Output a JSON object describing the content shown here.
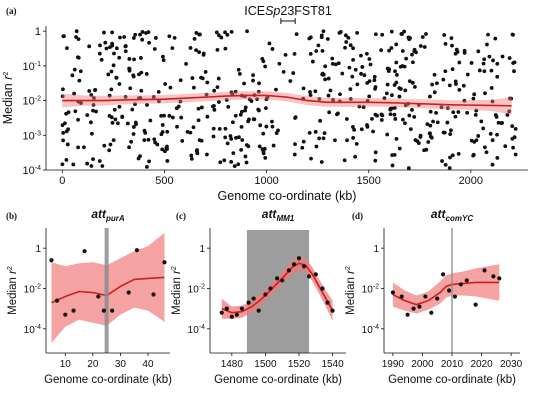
{
  "colors": {
    "ribbon": "#f07a7a",
    "trend": "#cc1f1f",
    "points": "#111111",
    "bar": "#8c8c8c"
  },
  "chart_data": [
    {
      "id": "a",
      "type": "scatter",
      "panel_label": "(a)",
      "title": "",
      "annotation": {
        "pre": "ICE",
        "italic": "Sp",
        "post": "23FST81",
        "x_range_kb": [
          1070,
          1140
        ]
      },
      "xlabel": "Genome co-ordinate (kb)",
      "ylabel_main": "Median ",
      "ylabel_italic": "r",
      "ylabel_sup": "2",
      "y_log": true,
      "xlim": [
        -80,
        2280
      ],
      "ylim_exp": [
        -4,
        0.15
      ],
      "xticks": [
        0,
        500,
        1000,
        1500,
        2000
      ],
      "yticks": [
        {
          "exp": 0,
          "base": "1",
          "sup": ""
        },
        {
          "exp": -1,
          "base": "10",
          "sup": "-1"
        },
        {
          "exp": -2,
          "base": "10",
          "sup": "-2"
        },
        {
          "exp": -3,
          "base": "10",
          "sup": "-3"
        },
        {
          "exp": -4,
          "base": "10",
          "sup": "-4"
        }
      ],
      "trend": {
        "x": [
          0,
          100,
          200,
          300,
          400,
          500,
          600,
          700,
          800,
          900,
          1000,
          1100,
          1200,
          1300,
          1400,
          1500,
          1600,
          1700,
          1800,
          1900,
          2000,
          2100,
          2200
        ],
        "y_exp": [
          -2.0,
          -2.0,
          -2.0,
          -1.98,
          -1.97,
          -1.96,
          -1.93,
          -1.9,
          -1.87,
          -1.85,
          -1.85,
          -1.9,
          -2.0,
          -2.05,
          -2.05,
          -2.05,
          -2.06,
          -2.08,
          -2.1,
          -2.12,
          -2.13,
          -2.14,
          -2.15
        ],
        "band": [
          0.2,
          0.15,
          0.14,
          0.13,
          0.12,
          0.12,
          0.12,
          0.12,
          0.12,
          0.12,
          0.12,
          0.12,
          0.13,
          0.13,
          0.13,
          0.12,
          0.12,
          0.12,
          0.13,
          0.13,
          0.14,
          0.16,
          0.25
        ]
      },
      "n_points": 620
    },
    {
      "id": "b",
      "type": "scatter",
      "panel_label": "(b)",
      "title_main": "att",
      "title_sub": "purA",
      "xlabel": "Genome co-ordinate (kb)",
      "ylabel_main": "Median ",
      "ylabel_italic": "r",
      "ylabel_sup": "2",
      "y_log": true,
      "xlim": [
        3,
        48
      ],
      "ylim_exp": [
        -5.2,
        1.0
      ],
      "xticks": [
        10,
        20,
        30,
        40
      ],
      "yticks": [
        {
          "exp": 0,
          "base": "1",
          "sup": ""
        },
        {
          "exp": -2,
          "base": "10",
          "sup": "-2"
        },
        {
          "exp": -4,
          "base": "10",
          "sup": "-4"
        }
      ],
      "vline_x": 25,
      "points": [
        {
          "x": 5,
          "y_exp": -0.6
        },
        {
          "x": 7,
          "y_exp": -2.6
        },
        {
          "x": 10,
          "y_exp": -3.3
        },
        {
          "x": 13,
          "y_exp": -3.1
        },
        {
          "x": 17,
          "y_exp": -0.15
        },
        {
          "x": 22,
          "y_exp": -2.4
        },
        {
          "x": 24,
          "y_exp": -3.1
        },
        {
          "x": 27,
          "y_exp": -3.1
        },
        {
          "x": 33,
          "y_exp": -2.2
        },
        {
          "x": 36,
          "y_exp": -0.1
        },
        {
          "x": 42,
          "y_exp": -2.3
        },
        {
          "x": 46,
          "y_exp": -0.7
        }
      ],
      "trend": {
        "x": [
          5,
          10,
          15,
          20,
          25,
          30,
          35,
          40,
          46
        ],
        "y_exp": [
          -2.7,
          -2.4,
          -2.15,
          -2.2,
          -2.35,
          -1.9,
          -1.55,
          -1.5,
          -1.45
        ],
        "band": [
          2.0,
          1.5,
          1.4,
          1.5,
          1.5,
          1.4,
          1.4,
          1.6,
          2.2
        ]
      }
    },
    {
      "id": "c",
      "type": "scatter",
      "panel_label": "(c)",
      "title_main": "att",
      "title_sub": "MM1",
      "xlabel": "Genome co-ordinate (kb)",
      "ylabel_main": "Median ",
      "ylabel_italic": "r",
      "ylabel_sup": "2",
      "y_log": true,
      "xlim": [
        1467,
        1548
      ],
      "ylim_exp": [
        -5.2,
        1.0
      ],
      "xticks": [
        1480,
        1500,
        1520,
        1540
      ],
      "yticks": [
        {
          "exp": 0,
          "base": "1",
          "sup": ""
        },
        {
          "exp": -2,
          "base": "10",
          "sup": "-2"
        },
        {
          "exp": -4,
          "base": "10",
          "sup": "-4"
        }
      ],
      "shaded_x": [
        1489,
        1526
      ],
      "points": [
        {
          "x": 1474,
          "y_exp": -3.2
        },
        {
          "x": 1477,
          "y_exp": -3.0
        },
        {
          "x": 1480,
          "y_exp": -3.4
        },
        {
          "x": 1483,
          "y_exp": -3.3
        },
        {
          "x": 1486,
          "y_exp": -3.0
        },
        {
          "x": 1490,
          "y_exp": -2.7
        },
        {
          "x": 1493,
          "y_exp": -2.5
        },
        {
          "x": 1496,
          "y_exp": -3.1
        },
        {
          "x": 1500,
          "y_exp": -2.3
        },
        {
          "x": 1503,
          "y_exp": -2.0
        },
        {
          "x": 1507,
          "y_exp": -1.5
        },
        {
          "x": 1510,
          "y_exp": -1.6
        },
        {
          "x": 1514,
          "y_exp": -1.1
        },
        {
          "x": 1517,
          "y_exp": -0.8
        },
        {
          "x": 1520,
          "y_exp": -0.5
        },
        {
          "x": 1523,
          "y_exp": -0.9
        },
        {
          "x": 1526,
          "y_exp": -1.4
        },
        {
          "x": 1530,
          "y_exp": -1.3
        },
        {
          "x": 1534,
          "y_exp": -2.0
        },
        {
          "x": 1537,
          "y_exp": -2.7
        },
        {
          "x": 1540,
          "y_exp": -3.1
        }
      ],
      "trend": {
        "x": [
          1474,
          1480,
          1486,
          1492,
          1498,
          1504,
          1510,
          1516,
          1520,
          1524,
          1528,
          1532,
          1536,
          1540
        ],
        "y_exp": [
          -3.0,
          -3.2,
          -3.15,
          -2.9,
          -2.5,
          -2.0,
          -1.5,
          -0.95,
          -0.75,
          -0.85,
          -1.3,
          -1.9,
          -2.5,
          -3.1
        ],
        "band": [
          0.5,
          0.3,
          0.3,
          0.3,
          0.3,
          0.3,
          0.3,
          0.35,
          0.35,
          0.35,
          0.35,
          0.35,
          0.4,
          0.5
        ]
      }
    },
    {
      "id": "d",
      "type": "scatter",
      "panel_label": "(d)",
      "title_main": "att",
      "title_sub": "comYC",
      "xlabel": "Genome co-ordinate (kb)",
      "ylabel_main": "Median ",
      "ylabel_italic": "r",
      "ylabel_sup": "2",
      "y_log": true,
      "xlim": [
        1987,
        2033
      ],
      "ylim_exp": [
        -5.2,
        1.0
      ],
      "xticks": [
        1990,
        2000,
        2010,
        2020,
        2030
      ],
      "yticks": [
        {
          "exp": 0,
          "base": "1",
          "sup": ""
        },
        {
          "exp": -2,
          "base": "10",
          "sup": "-2"
        },
        {
          "exp": -4,
          "base": "10",
          "sup": "-4"
        }
      ],
      "vline_x": 2010,
      "points": [
        {
          "x": 1990,
          "y_exp": -2.2
        },
        {
          "x": 1993,
          "y_exp": -2.4
        },
        {
          "x": 1995,
          "y_exp": -3.3
        },
        {
          "x": 1997,
          "y_exp": -3.0
        },
        {
          "x": 1999,
          "y_exp": -2.9
        },
        {
          "x": 2001,
          "y_exp": -2.4
        },
        {
          "x": 2003,
          "y_exp": -3.2
        },
        {
          "x": 2005,
          "y_exp": -2.5
        },
        {
          "x": 2007,
          "y_exp": -1.3
        },
        {
          "x": 2009,
          "y_exp": -2.1
        },
        {
          "x": 2011,
          "y_exp": -2.4
        },
        {
          "x": 2013,
          "y_exp": -1.8
        },
        {
          "x": 2015,
          "y_exp": -1.6
        },
        {
          "x": 2018,
          "y_exp": -2.8
        },
        {
          "x": 2021,
          "y_exp": -1.1
        },
        {
          "x": 2024,
          "y_exp": -1.4
        },
        {
          "x": 2026,
          "y_exp": -1.5
        }
      ],
      "trend": {
        "x": [
          1990,
          1994,
          1998,
          2002,
          2006,
          2008,
          2010,
          2014,
          2018,
          2022,
          2026
        ],
        "y_exp": [
          -2.3,
          -2.6,
          -2.8,
          -2.6,
          -2.2,
          -1.9,
          -1.8,
          -1.75,
          -1.7,
          -1.7,
          -1.7
        ],
        "band": [
          0.6,
          0.5,
          0.45,
          0.45,
          0.55,
          0.55,
          0.55,
          0.6,
          0.7,
          0.8,
          0.9
        ]
      }
    }
  ]
}
